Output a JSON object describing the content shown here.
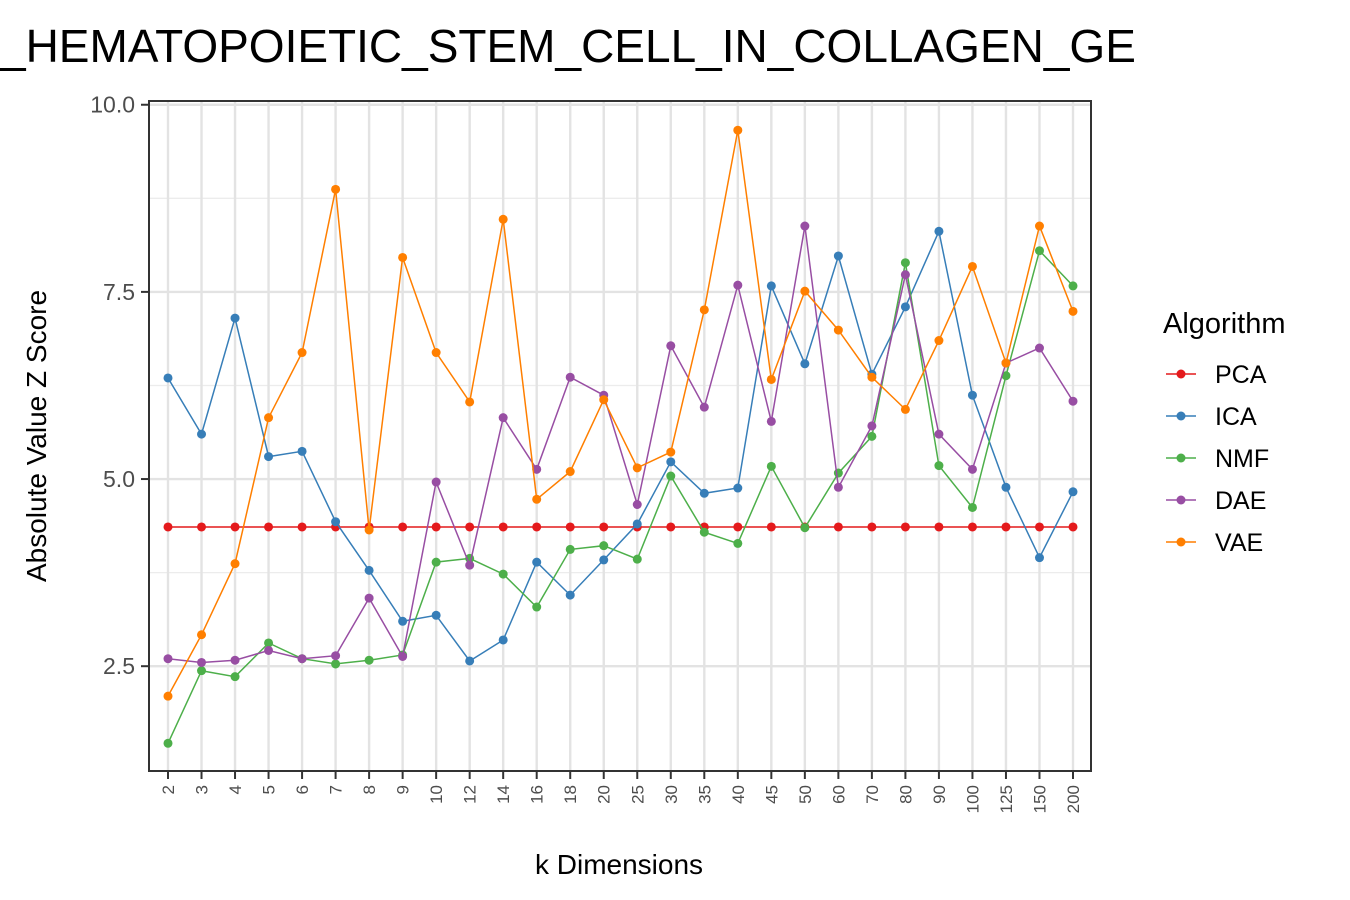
{
  "chart_data": {
    "type": "line",
    "title": "_HEMATOPOIETIC_STEM_CELL_IN_COLLAGEN_GE",
    "xlabel": "k Dimensions",
    "ylabel": "Absolute Value Z Score",
    "categories": [
      "2",
      "3",
      "4",
      "5",
      "6",
      "7",
      "8",
      "9",
      "10",
      "12",
      "14",
      "16",
      "18",
      "20",
      "25",
      "30",
      "35",
      "40",
      "45",
      "50",
      "60",
      "70",
      "80",
      "90",
      "100",
      "125",
      "150",
      "200"
    ],
    "ylim": [
      1.1,
      10.05
    ],
    "yticks": [
      2.5,
      5.0,
      7.5,
      10.0
    ],
    "ytick_labels": [
      "2.5",
      "5.0",
      "7.5",
      "10.0"
    ],
    "grid": true,
    "legend": {
      "title": "Algorithm",
      "placement": "right"
    },
    "series": [
      {
        "name": "PCA",
        "color": "#e41a1c",
        "values": [
          4.36,
          4.36,
          4.36,
          4.36,
          4.36,
          4.36,
          4.36,
          4.36,
          4.36,
          4.36,
          4.36,
          4.36,
          4.36,
          4.36,
          4.36,
          4.36,
          4.36,
          4.36,
          4.36,
          4.36,
          4.36,
          4.36,
          4.36,
          4.36,
          4.36,
          4.36,
          4.36,
          4.36
        ]
      },
      {
        "name": "ICA",
        "color": "#377eb8",
        "values": [
          6.35,
          5.6,
          7.15,
          5.3,
          5.37,
          4.43,
          3.78,
          3.1,
          3.18,
          2.57,
          2.85,
          3.89,
          3.45,
          3.92,
          4.4,
          5.23,
          4.81,
          4.88,
          7.58,
          6.54,
          7.98,
          6.4,
          7.3,
          8.31,
          6.12,
          4.89,
          3.95,
          4.83
        ]
      },
      {
        "name": "NMF",
        "color": "#4daf4a",
        "values": [
          1.47,
          2.44,
          2.36,
          2.81,
          2.6,
          2.53,
          2.58,
          2.65,
          3.89,
          3.94,
          3.73,
          3.29,
          4.06,
          4.11,
          3.93,
          5.04,
          4.29,
          4.14,
          5.17,
          4.35,
          5.08,
          5.57,
          7.89,
          5.18,
          4.62,
          6.38,
          8.05,
          7.58
        ]
      },
      {
        "name": "DAE",
        "color": "#984ea3",
        "values": [
          2.6,
          2.55,
          2.58,
          2.71,
          2.6,
          2.64,
          3.41,
          2.63,
          4.96,
          3.85,
          5.82,
          5.13,
          6.36,
          6.12,
          4.66,
          6.78,
          5.96,
          7.59,
          5.77,
          8.38,
          4.89,
          5.71,
          7.73,
          5.6,
          5.13,
          6.55,
          6.75,
          6.04
        ]
      },
      {
        "name": "VAE",
        "color": "#ff7f00",
        "values": [
          2.1,
          2.92,
          3.87,
          5.82,
          6.69,
          8.87,
          4.32,
          7.96,
          6.69,
          6.03,
          8.47,
          4.73,
          5.1,
          6.06,
          5.15,
          5.36,
          7.26,
          9.66,
          6.33,
          7.51,
          6.99,
          6.36,
          5.93,
          6.85,
          7.84,
          6.55,
          8.38,
          7.24
        ]
      }
    ]
  }
}
